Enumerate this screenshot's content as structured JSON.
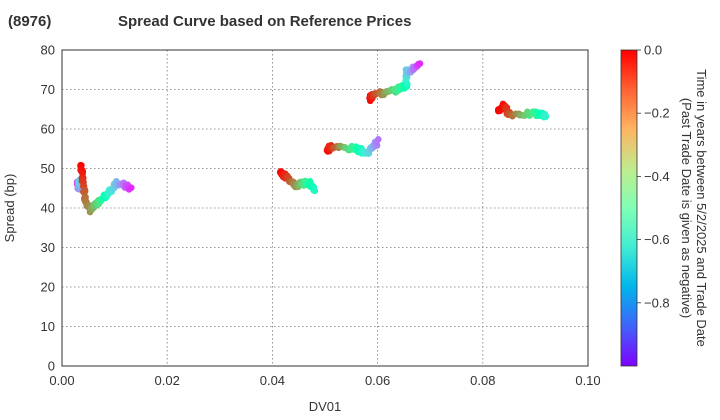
{
  "chart_data": {
    "type": "scatter",
    "title_code": "(8976)",
    "title": "Spread Curve based on Reference Prices",
    "xlabel": "DV01",
    "ylabel": "Spread (bp)",
    "xlim": [
      0.0,
      0.1
    ],
    "ylim": [
      0,
      80
    ],
    "xticks": [
      "0.00",
      "0.02",
      "0.04",
      "0.06",
      "0.08",
      "0.10"
    ],
    "xtick_values": [
      0.0,
      0.02,
      0.04,
      0.06,
      0.08,
      0.1
    ],
    "yticks": [
      "0",
      "10",
      "20",
      "30",
      "40",
      "50",
      "60",
      "70",
      "80"
    ],
    "ytick_values": [
      0,
      10,
      20,
      30,
      40,
      50,
      60,
      70,
      80
    ],
    "grid": true,
    "colorbar": {
      "label_line1": "Time in years between 5/2/2025 and Trade Date",
      "label_line2": "(Past Trade Date is given as negative)",
      "range": [
        -1.0,
        0.0
      ],
      "ticks": [
        "0.0",
        "−0.2",
        "−0.4",
        "−0.6",
        "−0.8"
      ],
      "tick_values": [
        0.0,
        -0.2,
        -0.4,
        -0.6,
        -0.8
      ],
      "colormap": "rainbow"
    },
    "clusters": [
      {
        "segments": [
          [
            0.003,
            46.5,
            -0.95,
            0.0032,
            45.0,
            -0.8
          ],
          [
            0.0032,
            45.0,
            -0.8,
            0.0033,
            47.0,
            -0.7
          ],
          [
            0.0035,
            51.0,
            0.0,
            0.004,
            47.0,
            -0.05
          ],
          [
            0.004,
            47.0,
            -0.05,
            0.0045,
            42.0,
            -0.15
          ]
        ]
      },
      {
        "segments": [
          [
            0.0045,
            42.0,
            -0.15,
            0.0055,
            39.5,
            -0.2
          ],
          [
            0.0055,
            39.5,
            -0.2,
            0.007,
            41.5,
            -0.35
          ],
          [
            0.007,
            41.5,
            -0.35,
            0.009,
            44.0,
            -0.6
          ],
          [
            0.009,
            44.0,
            -0.6,
            0.0105,
            46.5,
            -0.75
          ],
          [
            0.0105,
            46.5,
            -0.75,
            0.013,
            45.0,
            -0.95
          ]
        ]
      },
      {
        "segments": [
          [
            0.0415,
            49.0,
            0.0,
            0.0425,
            48.0,
            -0.05
          ],
          [
            0.0425,
            48.0,
            -0.05,
            0.0445,
            45.8,
            -0.2
          ],
          [
            0.0445,
            45.8,
            -0.2,
            0.047,
            46.5,
            -0.45
          ],
          [
            0.047,
            46.5,
            -0.45,
            0.048,
            44.5,
            -0.55
          ]
        ]
      },
      {
        "segments": [
          [
            0.0505,
            54.5,
            0.0,
            0.051,
            55.5,
            -0.05
          ],
          [
            0.051,
            55.5,
            -0.05,
            0.056,
            55.0,
            -0.45
          ],
          [
            0.056,
            55.0,
            -0.45,
            0.058,
            54.0,
            -0.65
          ],
          [
            0.058,
            54.0,
            -0.65,
            0.06,
            56.8,
            -0.85
          ]
        ]
      },
      {
        "segments": [
          [
            0.0585,
            67.5,
            0.0,
            0.059,
            68.8,
            -0.05
          ],
          [
            0.059,
            68.8,
            -0.05,
            0.062,
            69.2,
            -0.25
          ],
          [
            0.062,
            69.2,
            -0.25,
            0.0655,
            71.0,
            -0.5
          ],
          [
            0.0655,
            71.0,
            -0.5,
            0.0655,
            74.5,
            -0.7
          ],
          [
            0.0655,
            74.5,
            -0.7,
            0.068,
            76.0,
            -0.95
          ]
        ]
      },
      {
        "segments": [
          [
            0.083,
            64.5,
            0.0,
            0.084,
            66.0,
            -0.02
          ],
          [
            0.084,
            66.0,
            -0.02,
            0.085,
            63.8,
            -0.1
          ],
          [
            0.085,
            63.8,
            -0.1,
            0.09,
            63.8,
            -0.4
          ],
          [
            0.09,
            63.8,
            -0.4,
            0.092,
            63.5,
            -0.6
          ]
        ]
      }
    ]
  }
}
